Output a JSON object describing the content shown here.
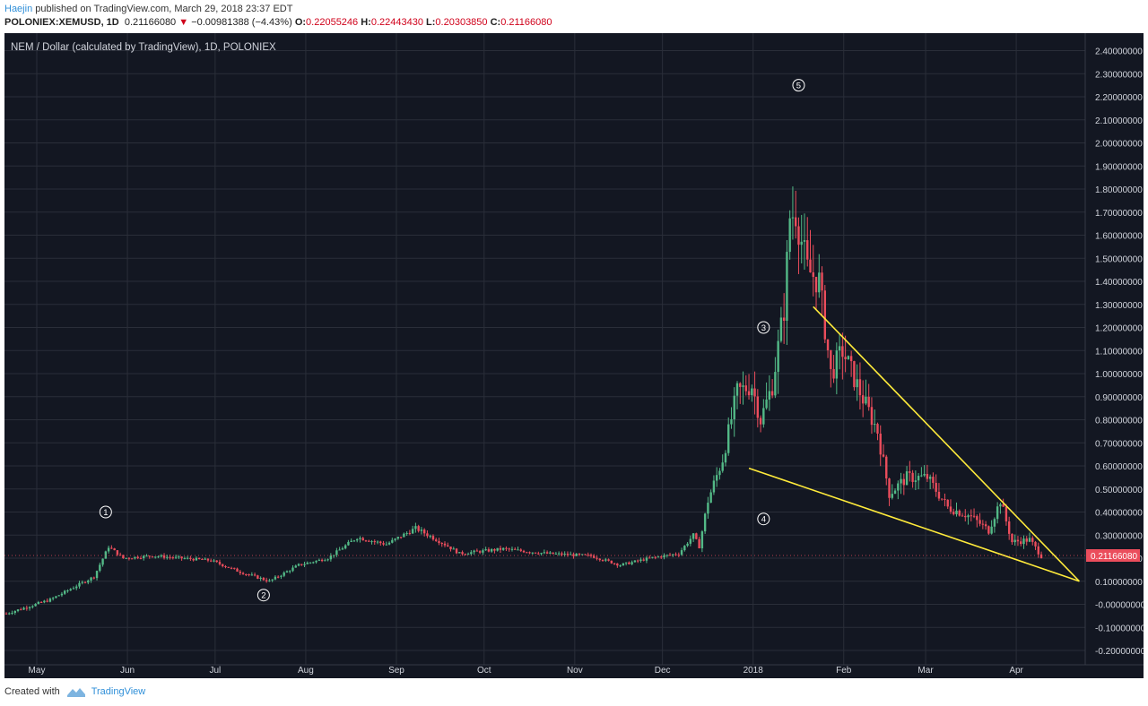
{
  "header": {
    "author": "Haejin",
    "published_text": "published on TradingView.com, March 29, 2018 23:37 EDT",
    "symbol": "POLONIEX:XEMUSD, 1D",
    "last": "0.21166080",
    "change": "−0.00981388 (−4.43%)",
    "open_label": "O:",
    "open": "0.22055246",
    "high_label": "H:",
    "high": "0.22443430",
    "low_label": "L:",
    "low": "0.20303850",
    "close_label": "C:",
    "close": "0.21166080"
  },
  "chart_data": {
    "type": "candlestick",
    "title": "NEM / Dollar (calculated by TradingView), 1D, POLONIEX",
    "y_ticks": [
      "2.40000000",
      "2.30000000",
      "2.20000000",
      "2.10000000",
      "2.00000000",
      "1.90000000",
      "1.80000000",
      "1.70000000",
      "1.60000000",
      "1.50000000",
      "1.40000000",
      "1.30000000",
      "1.20000000",
      "1.10000000",
      "1.00000000",
      "0.90000000",
      "0.80000000",
      "0.70000000",
      "0.60000000",
      "0.50000000",
      "0.40000000",
      "0.30000000",
      "0.20000000",
      "0.10000000",
      "-0.00000000",
      "-0.10000000",
      "-0.20000000"
    ],
    "x_ticks": [
      "May",
      "Jun",
      "Jul",
      "Aug",
      "Sep",
      "Oct",
      "Nov",
      "Dec",
      "2018",
      "Feb",
      "Mar",
      "Apr"
    ],
    "ylim": [
      -0.28,
      2.45
    ],
    "last_price_label": "0.21166080",
    "price_path": [
      {
        "d": 0,
        "p": -0.04
      },
      {
        "d": 15,
        "p": 0.02
      },
      {
        "d": 30,
        "p": 0.12
      },
      {
        "d": 35,
        "p": 0.25
      },
      {
        "d": 40,
        "p": 0.2
      },
      {
        "d": 50,
        "p": 0.21
      },
      {
        "d": 70,
        "p": 0.19
      },
      {
        "d": 80,
        "p": 0.14
      },
      {
        "d": 90,
        "p": 0.1
      },
      {
        "d": 100,
        "p": 0.17
      },
      {
        "d": 110,
        "p": 0.2
      },
      {
        "d": 120,
        "p": 0.29
      },
      {
        "d": 130,
        "p": 0.26
      },
      {
        "d": 140,
        "p": 0.33
      },
      {
        "d": 150,
        "p": 0.26
      },
      {
        "d": 155,
        "p": 0.22
      },
      {
        "d": 170,
        "p": 0.24
      },
      {
        "d": 185,
        "p": 0.22
      },
      {
        "d": 200,
        "p": 0.21
      },
      {
        "d": 210,
        "p": 0.17
      },
      {
        "d": 220,
        "p": 0.2
      },
      {
        "d": 230,
        "p": 0.22
      },
      {
        "d": 235,
        "p": 0.3
      },
      {
        "d": 237,
        "p": 0.25
      },
      {
        "d": 240,
        "p": 0.45
      },
      {
        "d": 245,
        "p": 0.63
      },
      {
        "d": 250,
        "p": 0.92
      },
      {
        "d": 255,
        "p": 0.95
      },
      {
        "d": 258,
        "p": 0.8
      },
      {
        "d": 262,
        "p": 0.95
      },
      {
        "d": 266,
        "p": 1.28
      },
      {
        "d": 268,
        "p": 1.68
      },
      {
        "d": 270,
        "p": 1.7
      },
      {
        "d": 274,
        "p": 1.45
      },
      {
        "d": 278,
        "p": 1.4
      },
      {
        "d": 282,
        "p": 1.0
      },
      {
        "d": 286,
        "p": 1.1
      },
      {
        "d": 292,
        "p": 0.92
      },
      {
        "d": 298,
        "p": 0.75
      },
      {
        "d": 302,
        "p": 0.48
      },
      {
        "d": 308,
        "p": 0.55
      },
      {
        "d": 315,
        "p": 0.55
      },
      {
        "d": 322,
        "p": 0.42
      },
      {
        "d": 330,
        "p": 0.38
      },
      {
        "d": 336,
        "p": 0.32
      },
      {
        "d": 340,
        "p": 0.45
      },
      {
        "d": 344,
        "p": 0.27
      },
      {
        "d": 350,
        "p": 0.28
      },
      {
        "d": 354,
        "p": 0.21
      }
    ],
    "wave_labels": [
      {
        "label": "1",
        "day": 34,
        "price": 0.4
      },
      {
        "label": "2",
        "day": 88,
        "price": 0.04
      },
      {
        "label": "3",
        "day": 259,
        "price": 1.2
      },
      {
        "label": "4",
        "day": 259,
        "price": 0.37
      },
      {
        "label": "5",
        "day": 271,
        "price": 2.25
      }
    ],
    "trendlines": [
      {
        "from": {
          "day": 276,
          "price": 1.29
        },
        "to": {
          "day": 367,
          "price": 0.1
        }
      },
      {
        "from": {
          "day": 254,
          "price": 0.59
        },
        "to": {
          "day": 367,
          "price": 0.1
        }
      }
    ],
    "colors": {
      "background": "#131722",
      "grid": "#2a2e39",
      "up": "#53b987",
      "down": "#eb4d5c",
      "trendline": "#ffeb3b",
      "last_price_bg": "#eb4d5c",
      "text": "#d1d4dc"
    }
  },
  "footer": {
    "created_with": "Created with",
    "brand": "TradingView"
  }
}
